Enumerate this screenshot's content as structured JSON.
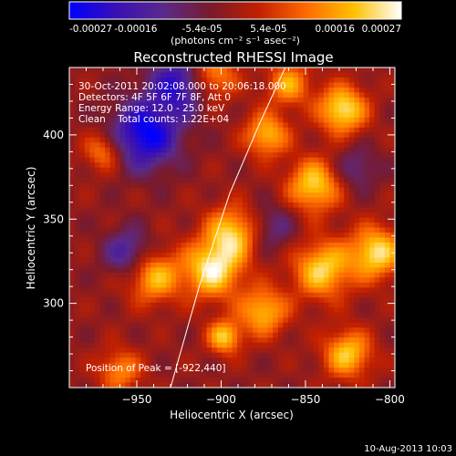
{
  "colorbar": {
    "tick_labels": [
      "-0.00027",
      "-0.00016",
      "-5.4e-05",
      "5.4e-05",
      "0.00016",
      "0.00027"
    ],
    "range": [
      -0.00027,
      0.00027
    ],
    "unit_label": "(photons cm⁻² s⁻¹ asec⁻²)",
    "colors": [
      "#0000ff",
      "#3a10b4",
      "#5a2a8a",
      "#7a1a2a",
      "#c22000",
      "#ff6a00",
      "#ffc000",
      "#ffffff"
    ]
  },
  "annotations": {
    "time": "30-Oct-2011 20:02:08.000 to 20:06:18.000",
    "detectors": "Detectors: 4F 5F 6F 7F 8F, Att 0",
    "energy": "Energy Range: 12.0 - 25.0 keV",
    "clean": "Clean    Total counts: 1.22E+04",
    "peak": "Position of Peak = [-922,440]"
  },
  "footer": {
    "timestamp": "10-Aug-2013 10:03"
  },
  "chart_data": {
    "type": "heatmap",
    "title": "Reconstructed RHESSI Image",
    "xlabel": "Heliocentric X (arcsec)",
    "ylabel": "Heliocentric Y (arcsec)",
    "xlim": [
      -990,
      -797
    ],
    "ylim": [
      250,
      440
    ],
    "x_ticks": [
      -950,
      -900,
      -850,
      -800
    ],
    "x_tick_labels": [
      "−950",
      "−900",
      "−850",
      "−800"
    ],
    "y_ticks": [
      300,
      350,
      400
    ],
    "y_tick_labels": [
      "300",
      "350",
      "400"
    ],
    "limb_line": [
      [
        -930,
        250
      ],
      [
        -913,
        310
      ],
      [
        -895,
        365
      ],
      [
        -878,
        405
      ],
      [
        -862,
        440
      ]
    ],
    "intensity_blobs": [
      {
        "x": -945,
        "y": 400,
        "amp": -1.0,
        "s": 14
      },
      {
        "x": -925,
        "y": 430,
        "amp": -0.8,
        "s": 12
      },
      {
        "x": -955,
        "y": 330,
        "amp": -0.6,
        "s": 10
      },
      {
        "x": -970,
        "y": 390,
        "amp": 0.6,
        "s": 8
      },
      {
        "x": -905,
        "y": 435,
        "amp": 0.7,
        "s": 10
      },
      {
        "x": -905,
        "y": 320,
        "amp": 1.0,
        "s": 12
      },
      {
        "x": -940,
        "y": 316,
        "amp": 0.8,
        "s": 11
      },
      {
        "x": -893,
        "y": 342,
        "amp": 0.85,
        "s": 11
      },
      {
        "x": -898,
        "y": 280,
        "amp": 0.85,
        "s": 7
      },
      {
        "x": -840,
        "y": 320,
        "amp": 0.9,
        "s": 12
      },
      {
        "x": -845,
        "y": 370,
        "amp": 0.9,
        "s": 11
      },
      {
        "x": -808,
        "y": 330,
        "amp": 0.95,
        "s": 11
      },
      {
        "x": -828,
        "y": 415,
        "amp": 1.0,
        "s": 10
      },
      {
        "x": -873,
        "y": 400,
        "amp": 0.8,
        "s": 9
      },
      {
        "x": -875,
        "y": 295,
        "amp": 0.8,
        "s": 10
      },
      {
        "x": -825,
        "y": 270,
        "amp": 0.85,
        "s": 10
      },
      {
        "x": -960,
        "y": 260,
        "amp": 0.6,
        "s": 9
      },
      {
        "x": -860,
        "y": 430,
        "amp": 0.7,
        "s": 9
      },
      {
        "x": -870,
        "y": 345,
        "amp": -0.4,
        "s": 10
      },
      {
        "x": -820,
        "y": 380,
        "amp": -0.4,
        "s": 9
      }
    ]
  }
}
